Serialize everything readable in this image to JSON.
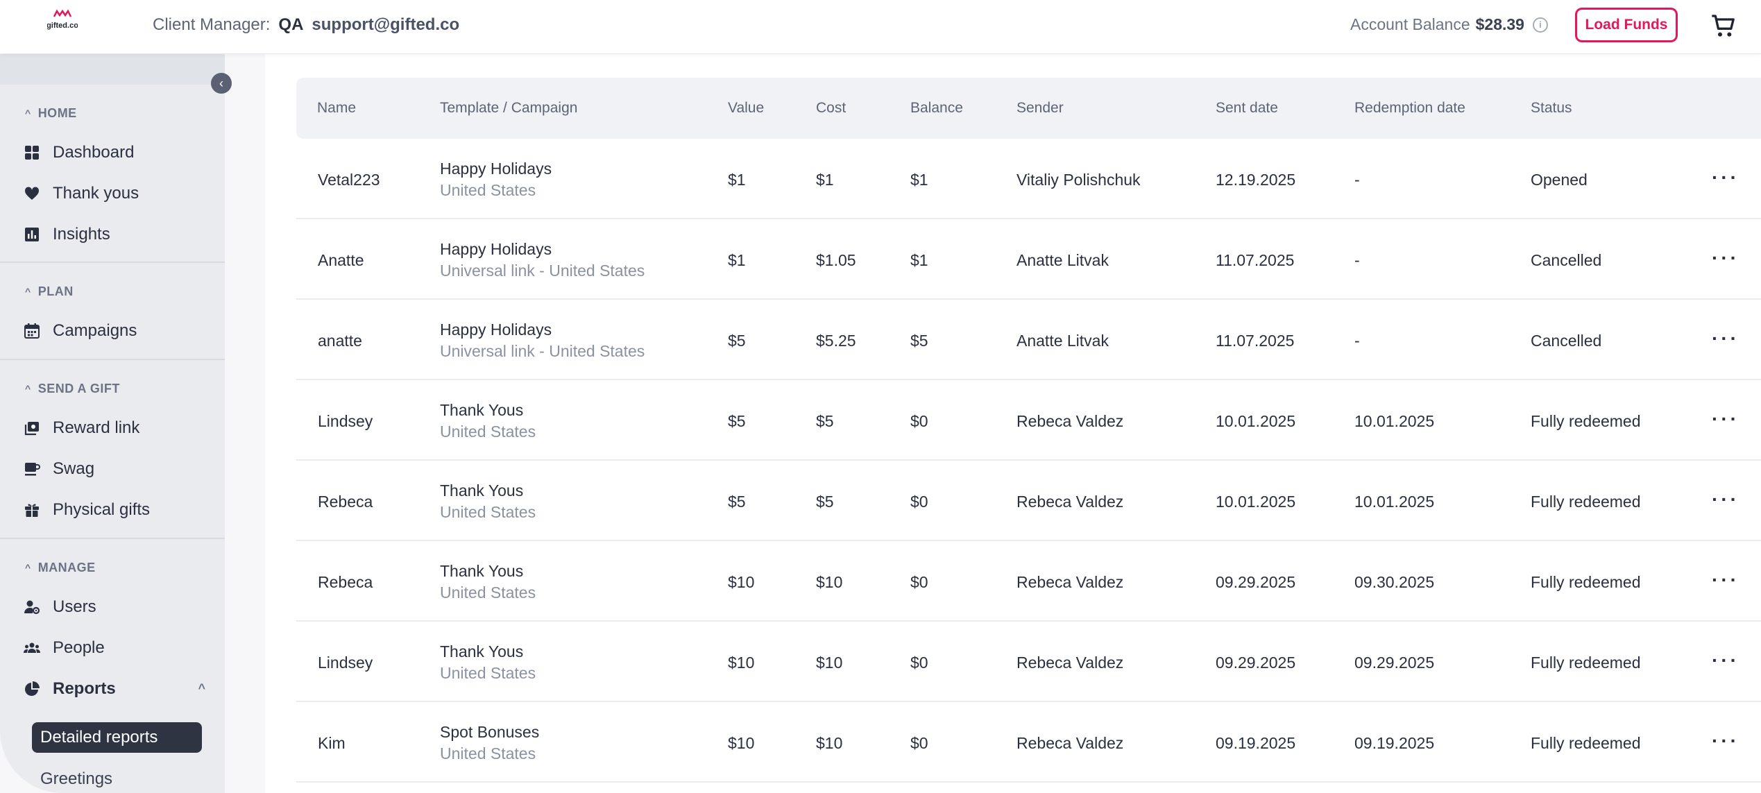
{
  "header": {
    "logo_text": "gifted.co",
    "client_label": "Client Manager:",
    "client_name": "QA",
    "client_email": "support@gifted.co",
    "balance_label": "Account Balance",
    "balance_value": "$28.39",
    "load_funds_label": "Load Funds",
    "accent_color": "#e2185b"
  },
  "sidebar": {
    "sections": [
      {
        "title": "HOME",
        "items": [
          {
            "label": "Dashboard",
            "icon": "dashboard-icon"
          },
          {
            "label": "Thank yous",
            "icon": "heart-icon"
          },
          {
            "label": "Insights",
            "icon": "bar-chart-icon"
          }
        ]
      },
      {
        "title": "PLAN",
        "items": [
          {
            "label": "Campaigns",
            "icon": "calendar-icon"
          }
        ]
      },
      {
        "title": "SEND A GIFT",
        "items": [
          {
            "label": "Reward link",
            "icon": "reward-link-icon"
          },
          {
            "label": "Swag",
            "icon": "mug-icon"
          },
          {
            "label": "Physical gifts",
            "icon": "gift-icon"
          }
        ]
      },
      {
        "title": "MANAGE",
        "items": [
          {
            "label": "Users",
            "icon": "user-gear-icon"
          },
          {
            "label": "People",
            "icon": "people-icon"
          },
          {
            "label": "Reports",
            "icon": "pie-chart-icon"
          }
        ]
      }
    ],
    "sub_items": [
      {
        "label": "Detailed reports",
        "active": true
      },
      {
        "label": "Greetings",
        "active": false
      }
    ]
  },
  "table": {
    "columns": [
      "Name",
      "Template / Campaign",
      "Value",
      "Cost",
      "Balance",
      "Sender",
      "Sent date",
      "Redemption date",
      "Status"
    ],
    "rows": [
      {
        "name": "Vetal223",
        "template": "Happy Holidays",
        "campaign": "United States",
        "value": "$1",
        "cost": "$1",
        "balance": "$1",
        "sender": "Vitaliy Polishchuk",
        "sent": "12.19.2025",
        "redeemed": "-",
        "status": "Opened"
      },
      {
        "name": "Anatte",
        "template": "Happy Holidays",
        "campaign": "Universal link - United States",
        "value": "$1",
        "cost": "$1.05",
        "balance": "$1",
        "sender": "Anatte Litvak",
        "sent": "11.07.2025",
        "redeemed": "-",
        "status": "Cancelled"
      },
      {
        "name": "anatte",
        "template": "Happy Holidays",
        "campaign": "Universal link - United States",
        "value": "$5",
        "cost": "$5.25",
        "balance": "$5",
        "sender": "Anatte Litvak",
        "sent": "11.07.2025",
        "redeemed": "-",
        "status": "Cancelled"
      },
      {
        "name": "Lindsey",
        "template": "Thank Yous",
        "campaign": "United States",
        "value": "$5",
        "cost": "$5",
        "balance": "$0",
        "sender": "Rebeca Valdez",
        "sent": "10.01.2025",
        "redeemed": "10.01.2025",
        "status": "Fully redeemed"
      },
      {
        "name": "Rebeca",
        "template": "Thank Yous",
        "campaign": "United States",
        "value": "$5",
        "cost": "$5",
        "balance": "$0",
        "sender": "Rebeca Valdez",
        "sent": "10.01.2025",
        "redeemed": "10.01.2025",
        "status": "Fully redeemed"
      },
      {
        "name": "Rebeca",
        "template": "Thank Yous",
        "campaign": "United States",
        "value": "$10",
        "cost": "$10",
        "balance": "$0",
        "sender": "Rebeca Valdez",
        "sent": "09.29.2025",
        "redeemed": "09.30.2025",
        "status": "Fully redeemed"
      },
      {
        "name": "Lindsey",
        "template": "Thank Yous",
        "campaign": "United States",
        "value": "$10",
        "cost": "$10",
        "balance": "$0",
        "sender": "Rebeca Valdez",
        "sent": "09.29.2025",
        "redeemed": "09.29.2025",
        "status": "Fully redeemed"
      },
      {
        "name": "Kim",
        "template": "Spot Bonuses",
        "campaign": "United States",
        "value": "$10",
        "cost": "$10",
        "balance": "$0",
        "sender": "Rebeca Valdez",
        "sent": "09.19.2025",
        "redeemed": "09.19.2025",
        "status": "Fully redeemed"
      }
    ]
  }
}
